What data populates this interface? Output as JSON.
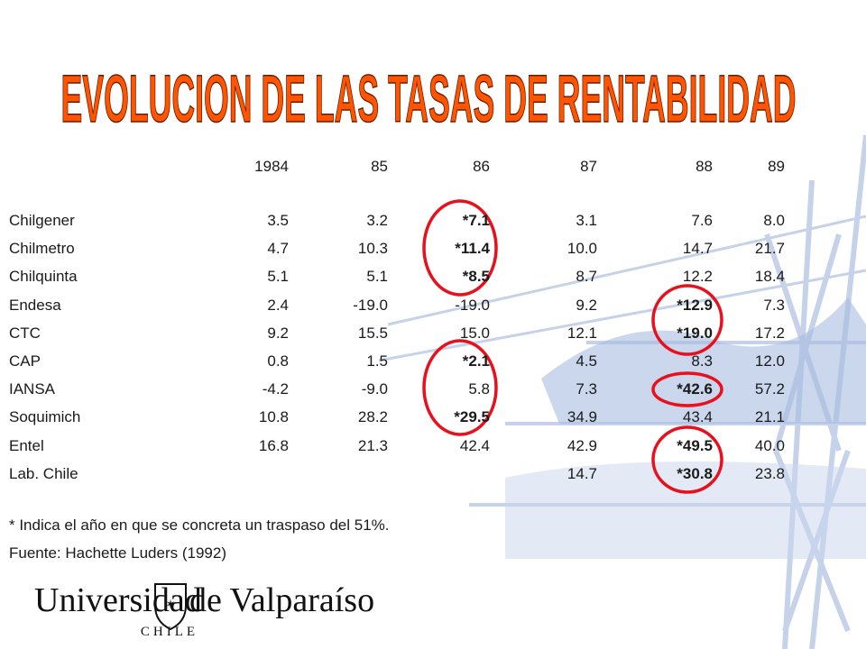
{
  "title": "EVOLUCION DE LAS TASAS DE RENTABILIDAD",
  "table": {
    "header": [
      "1984",
      "85",
      "86",
      "87",
      "88",
      "89"
    ],
    "rows": [
      [
        "Chilgener",
        "3.5",
        "3.2",
        "*7.1",
        "3.1",
        "7.6",
        "8.0"
      ],
      [
        "Chilmetro",
        "4.7",
        "10.3",
        "*11.4",
        "10.0",
        "14.7",
        "21.7"
      ],
      [
        "Chilquinta",
        "5.1",
        "5.1",
        "*8.5",
        "8.7",
        "12.2",
        "18.4"
      ],
      [
        "Endesa",
        "2.4",
        "-19.0",
        "-19.0",
        "9.2",
        "*12.9",
        "7.3"
      ],
      [
        "CTC",
        "9.2",
        "15.5",
        "15.0",
        "12.1",
        "*19.0",
        "17.2"
      ],
      [
        "CAP",
        "0.8",
        "1.5",
        "*2.1",
        "4.5",
        "8.3",
        "12.0"
      ],
      [
        "IANSA",
        "-4.2",
        "-9.0",
        "5.8",
        "7.3",
        "*42.6",
        "57.2"
      ],
      [
        "Soquimich",
        "10.8",
        "28.2",
        "*29.5",
        "34.9",
        "43.4",
        "21.1"
      ],
      [
        "Entel",
        "16.8",
        "21.3",
        "42.4",
        "42.9",
        "*49.5",
        "40.0"
      ],
      [
        "Lab. Chile",
        null,
        null,
        null,
        "14.7",
        "*30.8",
        "23.8"
      ]
    ]
  },
  "notes": [
    "* Indica el año en que se concreta un traspaso del 51%.",
    "Fuente: Hachette Luders (1992)"
  ],
  "logo": {
    "name": "Universidad",
    "name2": "de Valparaíso",
    "country": "CHILE"
  }
}
